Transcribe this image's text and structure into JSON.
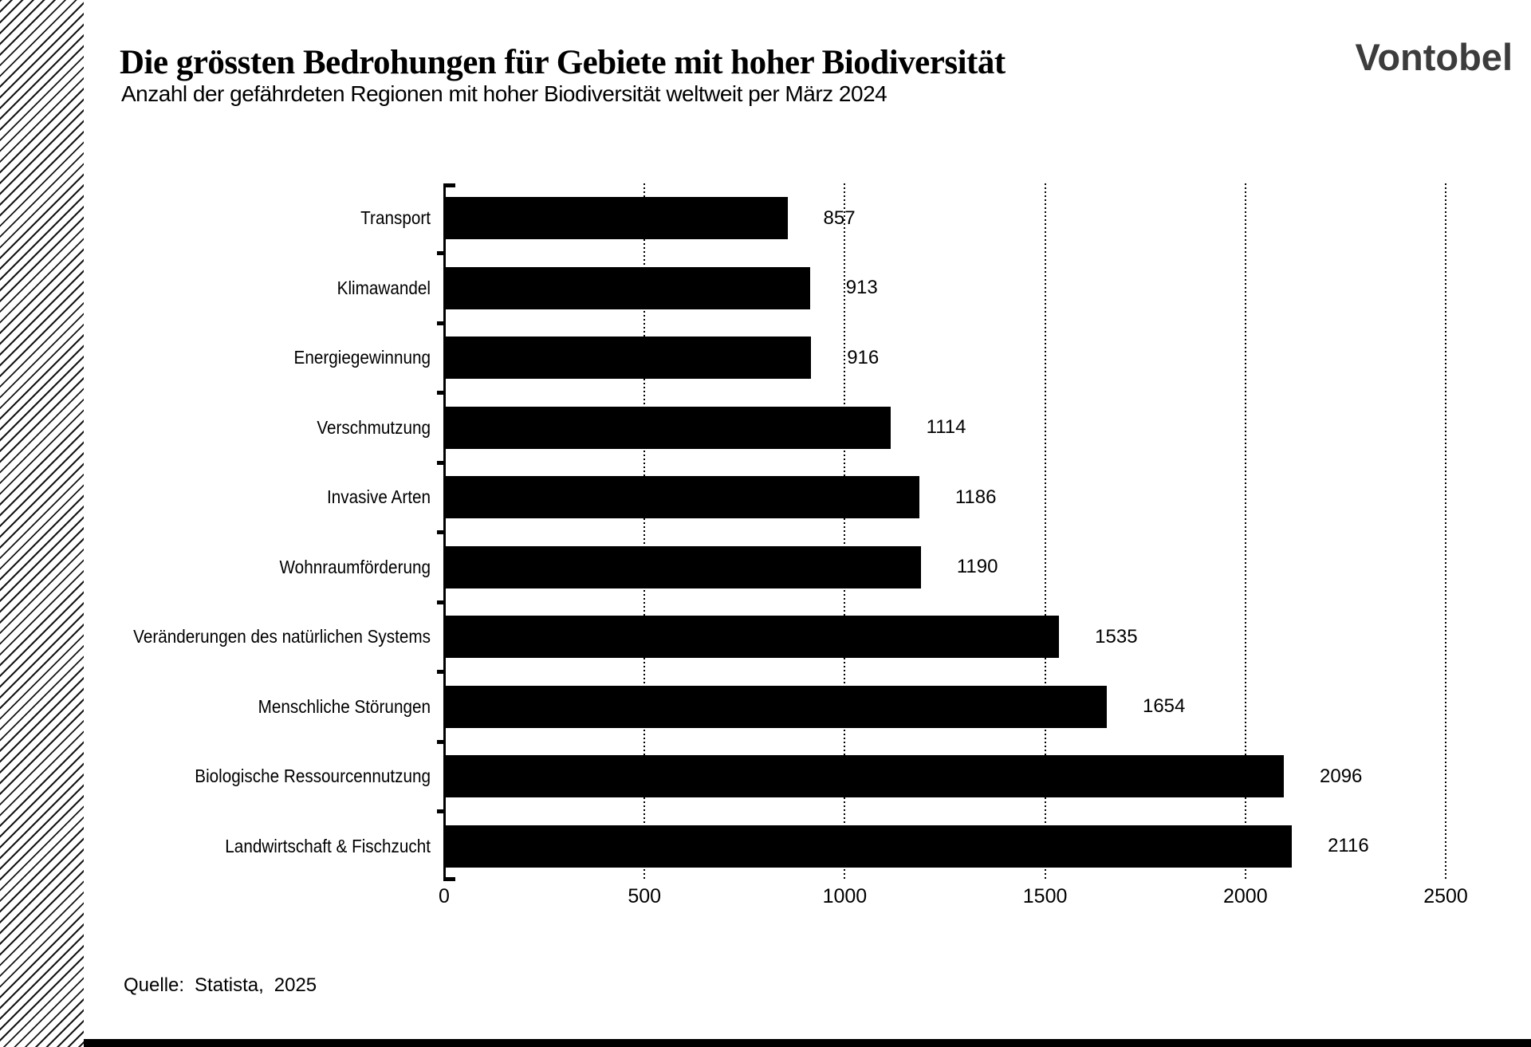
{
  "header": {
    "title": "Die grössten Bedrohungen für Gebiete mit hoher Biodiversität",
    "subtitle": "Anzahl der gefährdeten Regionen mit hoher Biodiversität weltweit per März 2024",
    "logo_text": "Vontobel"
  },
  "chart_data": {
    "type": "bar",
    "orientation": "horizontal",
    "title": "Die grössten Bedrohungen für Gebiete mit hoher Biodiversität",
    "subtitle": "Anzahl der gefährdeten Regionen mit hoher Biodiversität weltweit per März 2024",
    "categories": [
      "Transport",
      "Klimawandel",
      "Energiegewinnung",
      "Verschmutzung",
      "Invasive Arten",
      "Wohnraumförderung",
      "Veränderungen des natürlichen Systems",
      "Menschliche Störungen",
      "Biologische Ressourcennutzung",
      "Landwirtschaft & Fischzucht"
    ],
    "values": [
      857,
      913,
      916,
      1114,
      1186,
      1190,
      1535,
      1654,
      2096,
      2116
    ],
    "xlabel": "",
    "ylabel": "",
    "xlim": [
      0,
      2500
    ],
    "x_ticks": [
      0,
      500,
      1000,
      1500,
      2000,
      2500
    ],
    "grid": "vertical-dotted",
    "value_labels_shown": true,
    "legend": "none"
  },
  "source": {
    "label": "Quelle:",
    "provider": "Statista,",
    "year": "2025"
  },
  "colors": {
    "bar": "#000000",
    "text": "#000000",
    "logo": "#3c3c3c",
    "background": "#ffffff"
  }
}
